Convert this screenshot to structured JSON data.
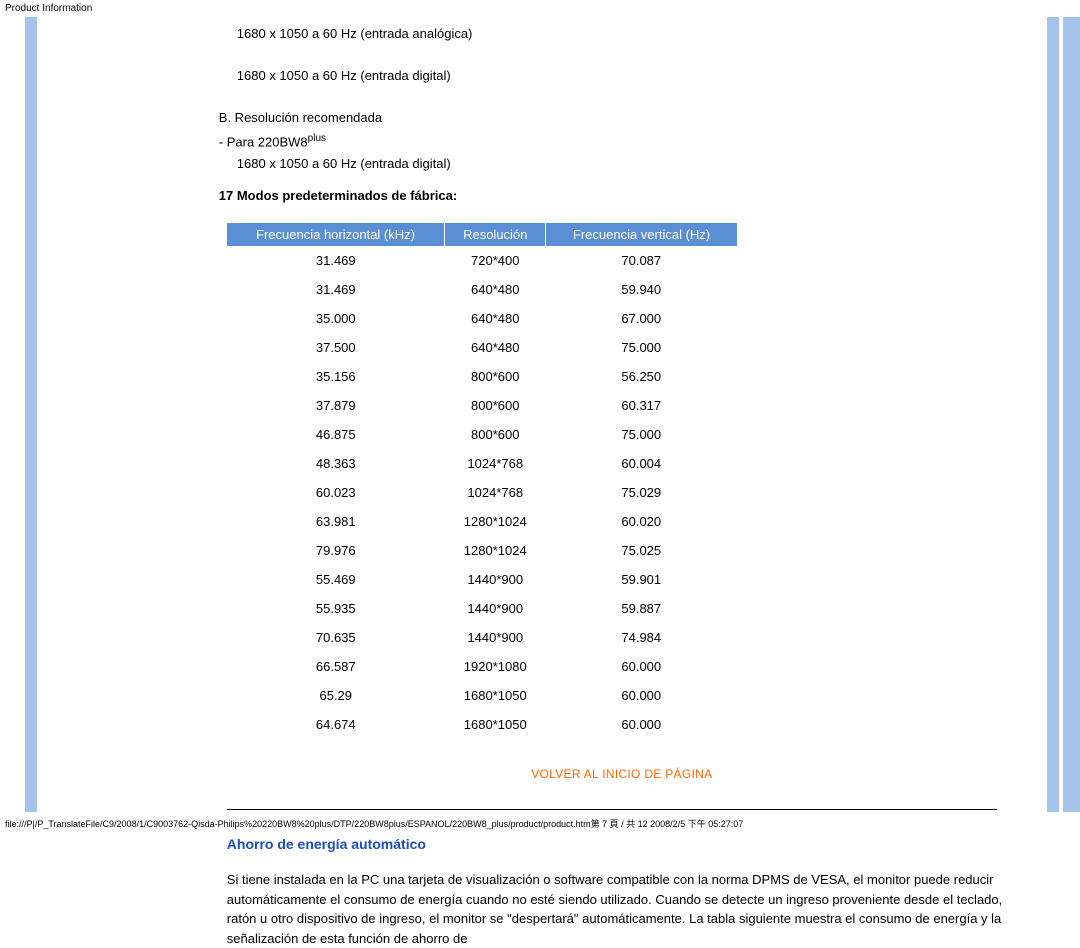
{
  "header": {
    "title": "Product Information"
  },
  "intro": {
    "line1": "1680 x 1050 a 60 Hz (entrada analógica)",
    "line2": "1680 x 1050 a 60 Hz (entrada digital)",
    "rec_b": "B.  Resolución recomendada",
    "rec_model_prefix": "-    Para 220BW8",
    "rec_model_sup": "plus",
    "rec_line": "1680 x 1050 a 60 Hz (entrada digital)",
    "preset_heading": "17 Modos predeterminados de fábrica:"
  },
  "table": {
    "cols": [
      "Frecuencia horizontal (kHz)",
      "Resolución",
      "Frecuencia vertical (Hz)"
    ],
    "header_bg": "#5b8fd5",
    "header_fg": "#ffffff",
    "rows": [
      [
        "31.469",
        "720*400",
        "70.087"
      ],
      [
        "31.469",
        "640*480",
        "59.940"
      ],
      [
        "35.000",
        "640*480",
        "67.000"
      ],
      [
        "37.500",
        "640*480",
        "75.000"
      ],
      [
        "35.156",
        "800*600",
        "56.250"
      ],
      [
        "37.879",
        "800*600",
        "60.317"
      ],
      [
        "46.875",
        "800*600",
        "75.000"
      ],
      [
        "48.363",
        "1024*768",
        "60.004"
      ],
      [
        "60.023",
        "1024*768",
        "75.029"
      ],
      [
        "63.981",
        "1280*1024",
        "60.020"
      ],
      [
        "79.976",
        "1280*1024",
        "75.025"
      ],
      [
        "55.469",
        "1440*900",
        "59.901"
      ],
      [
        "55.935",
        "1440*900",
        "59.887"
      ],
      [
        "70.635",
        "1440*900",
        "74.984"
      ],
      [
        "66.587",
        "1920*1080",
        "60.000"
      ],
      [
        "65.29",
        "1680*1050",
        "60.000"
      ],
      [
        "64.674",
        "1680*1050",
        "60.000"
      ]
    ]
  },
  "back_link": "VOLVER AL INICIO DE PÁGINA",
  "section": {
    "title": "Ahorro de energía automático",
    "para": "Si tiene instalada en la PC una tarjeta de visualización o software compatible con la norma DPMS de VESA, el monitor puede reducir automáticamente el consumo de energía cuando no esté siendo utilizado. Cuando se detecte un ingreso proveniente desde el teclado, ratón u otro dispositivo de ingreso, el monitor se \"despertará\" automáticamente. La tabla siguiente muestra el consumo de energía y la señalización de esta función de ahorro de"
  },
  "footer": "file:///P|/P_TranslateFile/C9/2008/1/C9003762-Qisda-Philips%20220BW8%20plus/DTP/220BW8plus/ESPANOL/220BW8_plus/product/product.htm第 7 頁 / 共 12 2008/2/5 下午 05:27:07",
  "colors": {
    "stripe": "#a4c4ec",
    "link_orange": "#ff6600",
    "section_blue": "#1a4ec2"
  }
}
